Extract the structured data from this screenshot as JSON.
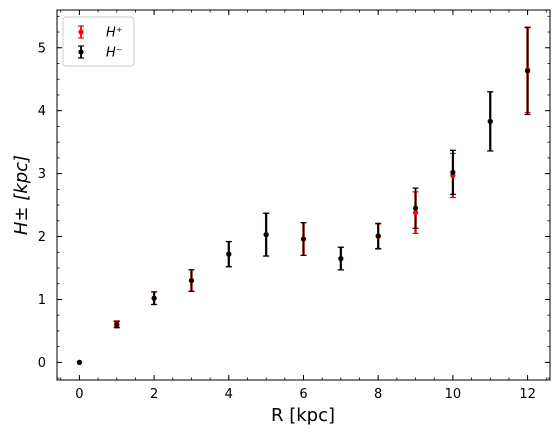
{
  "chart_data": {
    "type": "scatter",
    "xlabel": "R [kpc]",
    "ylabel": "H± [kpc]",
    "xlim": [
      -0.6,
      12.6
    ],
    "ylim": [
      -0.28,
      5.6
    ],
    "xticks": [
      0,
      2,
      4,
      6,
      8,
      10,
      12
    ],
    "yticks": [
      0,
      1,
      2,
      3,
      4,
      5
    ],
    "x_minor_step": 0.5,
    "y_minor_step": 0.25,
    "grid": false,
    "legend_position": "top-left",
    "series": [
      {
        "name": "H⁺",
        "color": "#ff0000",
        "x": [
          0,
          1,
          2,
          3,
          4,
          5,
          6,
          7,
          8,
          9,
          10,
          11,
          12
        ],
        "y": [
          0.0,
          0.61,
          1.02,
          1.3,
          1.72,
          2.03,
          1.96,
          1.65,
          2.0,
          2.38,
          2.97,
          3.83,
          4.65
        ],
        "yerr": [
          0.0,
          0.05,
          0.1,
          0.17,
          0.2,
          0.34,
          0.26,
          0.18,
          0.2,
          0.33,
          0.35,
          0.47,
          0.68
        ]
      },
      {
        "name": "H⁻",
        "color": "#000000",
        "x": [
          0,
          1,
          2,
          3,
          4,
          5,
          6,
          7,
          8,
          9,
          10,
          11,
          12
        ],
        "y": [
          0.0,
          0.6,
          1.02,
          1.3,
          1.72,
          2.03,
          1.96,
          1.65,
          2.01,
          2.45,
          3.02,
          3.83,
          4.63
        ],
        "yerr": [
          0.0,
          0.05,
          0.1,
          0.17,
          0.2,
          0.34,
          0.26,
          0.18,
          0.2,
          0.32,
          0.35,
          0.47,
          0.69
        ]
      }
    ]
  }
}
